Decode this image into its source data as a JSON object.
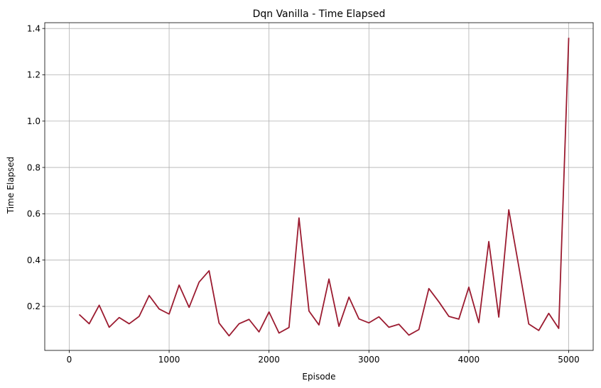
{
  "chart_data": {
    "type": "line",
    "title": "Dqn Vanilla - Time Elapsed",
    "xlabel": "Episode",
    "ylabel": "Time Elapsed",
    "xlim": [
      -245,
      5245
    ],
    "ylim": [
      0.01,
      1.425
    ],
    "xticks": [
      0,
      1000,
      2000,
      3000,
      4000,
      5000
    ],
    "yticks": [
      0.2,
      0.4,
      0.6,
      0.8,
      1.0,
      1.2,
      1.4
    ],
    "xtick_labels": [
      "0",
      "1000",
      "2000",
      "3000",
      "4000",
      "5000"
    ],
    "ytick_labels": [
      "0.2",
      "0.4",
      "0.6",
      "0.8",
      "1.0",
      "1.2",
      "1.4"
    ],
    "grid": true,
    "line_color": "#9b1b30",
    "series": [
      {
        "x": [
          100,
          200,
          300,
          400,
          500,
          600,
          700,
          800,
          900,
          1000,
          1100,
          1200,
          1300,
          1400,
          1500,
          1600,
          1700,
          1800,
          1900,
          2000,
          2100,
          2200,
          2300,
          2400,
          2500,
          2600,
          2700,
          2800,
          2900,
          3000,
          3100,
          3200,
          3300,
          3400,
          3500,
          3600,
          3700,
          3800,
          3900,
          4000,
          4100,
          4200,
          4300,
          4400,
          4500,
          4600,
          4700,
          4800,
          4900,
          5000
        ],
        "values": [
          0.165,
          0.125,
          0.205,
          0.11,
          0.152,
          0.125,
          0.157,
          0.247,
          0.189,
          0.167,
          0.292,
          0.196,
          0.305,
          0.354,
          0.128,
          0.073,
          0.125,
          0.144,
          0.09,
          0.176,
          0.085,
          0.109,
          0.582,
          0.18,
          0.12,
          0.318,
          0.114,
          0.24,
          0.146,
          0.129,
          0.155,
          0.11,
          0.123,
          0.076,
          0.1,
          0.277,
          0.22,
          0.157,
          0.145,
          0.283,
          0.13,
          0.48,
          0.154,
          0.617,
          0.373,
          0.124,
          0.096,
          0.17,
          0.105,
          1.36
        ]
      }
    ]
  }
}
